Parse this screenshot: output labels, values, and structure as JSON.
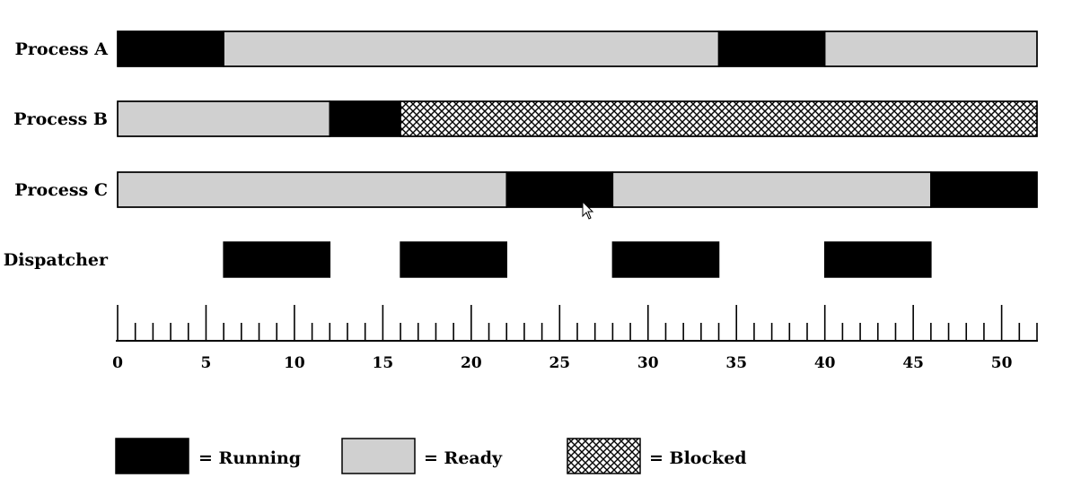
{
  "states": {
    "running": {
      "label": "= Running",
      "fill": "#000000"
    },
    "ready": {
      "label": "= Ready",
      "fill": "#d0d0d0"
    },
    "blocked": {
      "label": "= Blocked",
      "fill": "pattern"
    }
  },
  "rows": [
    {
      "label": "Process A",
      "segments": [
        {
          "start": 0,
          "end": 6,
          "state": "running"
        },
        {
          "start": 6,
          "end": 34,
          "state": "ready"
        },
        {
          "start": 34,
          "end": 40,
          "state": "running"
        },
        {
          "start": 40,
          "end": 52,
          "state": "ready"
        }
      ]
    },
    {
      "label": "Process B",
      "segments": [
        {
          "start": 0,
          "end": 12,
          "state": "ready"
        },
        {
          "start": 12,
          "end": 16,
          "state": "running"
        },
        {
          "start": 16,
          "end": 52,
          "state": "blocked"
        }
      ]
    },
    {
      "label": "Process C",
      "segments": [
        {
          "start": 0,
          "end": 22,
          "state": "ready"
        },
        {
          "start": 22,
          "end": 28,
          "state": "running"
        },
        {
          "start": 28,
          "end": 46,
          "state": "ready"
        },
        {
          "start": 46,
          "end": 52,
          "state": "running"
        }
      ]
    },
    {
      "label": "Dispatcher",
      "segments": [
        {
          "start": 6,
          "end": 12,
          "state": "running"
        },
        {
          "start": 16,
          "end": 22,
          "state": "running"
        },
        {
          "start": 28,
          "end": 34,
          "state": "running"
        },
        {
          "start": 40,
          "end": 46,
          "state": "running"
        }
      ]
    }
  ],
  "axis": {
    "min": 0,
    "max": 52,
    "minor_step": 1,
    "major_step": 5,
    "tick_labels": [
      "0",
      "5",
      "10",
      "15",
      "20",
      "25",
      "30",
      "35",
      "40",
      "45",
      "50"
    ]
  },
  "legend": [
    "running",
    "ready",
    "blocked"
  ]
}
